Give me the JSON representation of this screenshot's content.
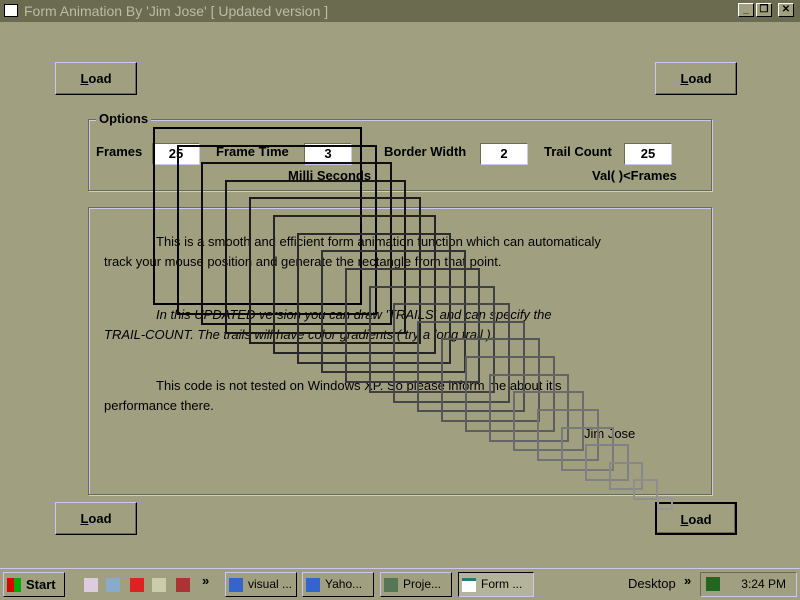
{
  "window": {
    "title": "Form Animation By 'Jim Jose' [ Updated version ]",
    "controls": [
      "minimize",
      "restore",
      "close"
    ]
  },
  "buttons": {
    "load_label_first": "L",
    "load_label_rest": "oad"
  },
  "options": {
    "legend": "Options",
    "frames_label": "Frames",
    "frames_value": "25",
    "frame_time_label": "Frame Time",
    "frame_time_value": "3",
    "frame_time_unit": "Milli Seconds",
    "border_width_label": "Border Width",
    "border_width_value": "2",
    "trail_count_label": "Trail Count",
    "trail_count_value": "25",
    "trail_count_note": "Val( )<Frames"
  },
  "description": {
    "p1": "This is a smooth and efficient form animation function which can automaticaly",
    "p1b": "track your mouse position and generate the rectangle from that point.",
    "p2": "In this UPDATED version you can draw 'TRAILS' and can specify the",
    "p2b": "TRAIL-COUNT. The trails will have color gradients ( try a long trail ).",
    "p3": "This code is not tested  on Windows XP. So please inform me about it's",
    "p3b": "performance there.",
    "author": "Jim Jose"
  },
  "taskbar": {
    "start": "Start",
    "quicklaunch": [
      "paint-brushes-icon",
      "notepad-icon",
      "acrobat-icon",
      "project-icon",
      "api-icon"
    ],
    "tasks": [
      "visual ...",
      "Yaho...",
      "Proje...",
      "Form ..."
    ],
    "desktop": "Desktop",
    "clock": "3:24 PM"
  }
}
